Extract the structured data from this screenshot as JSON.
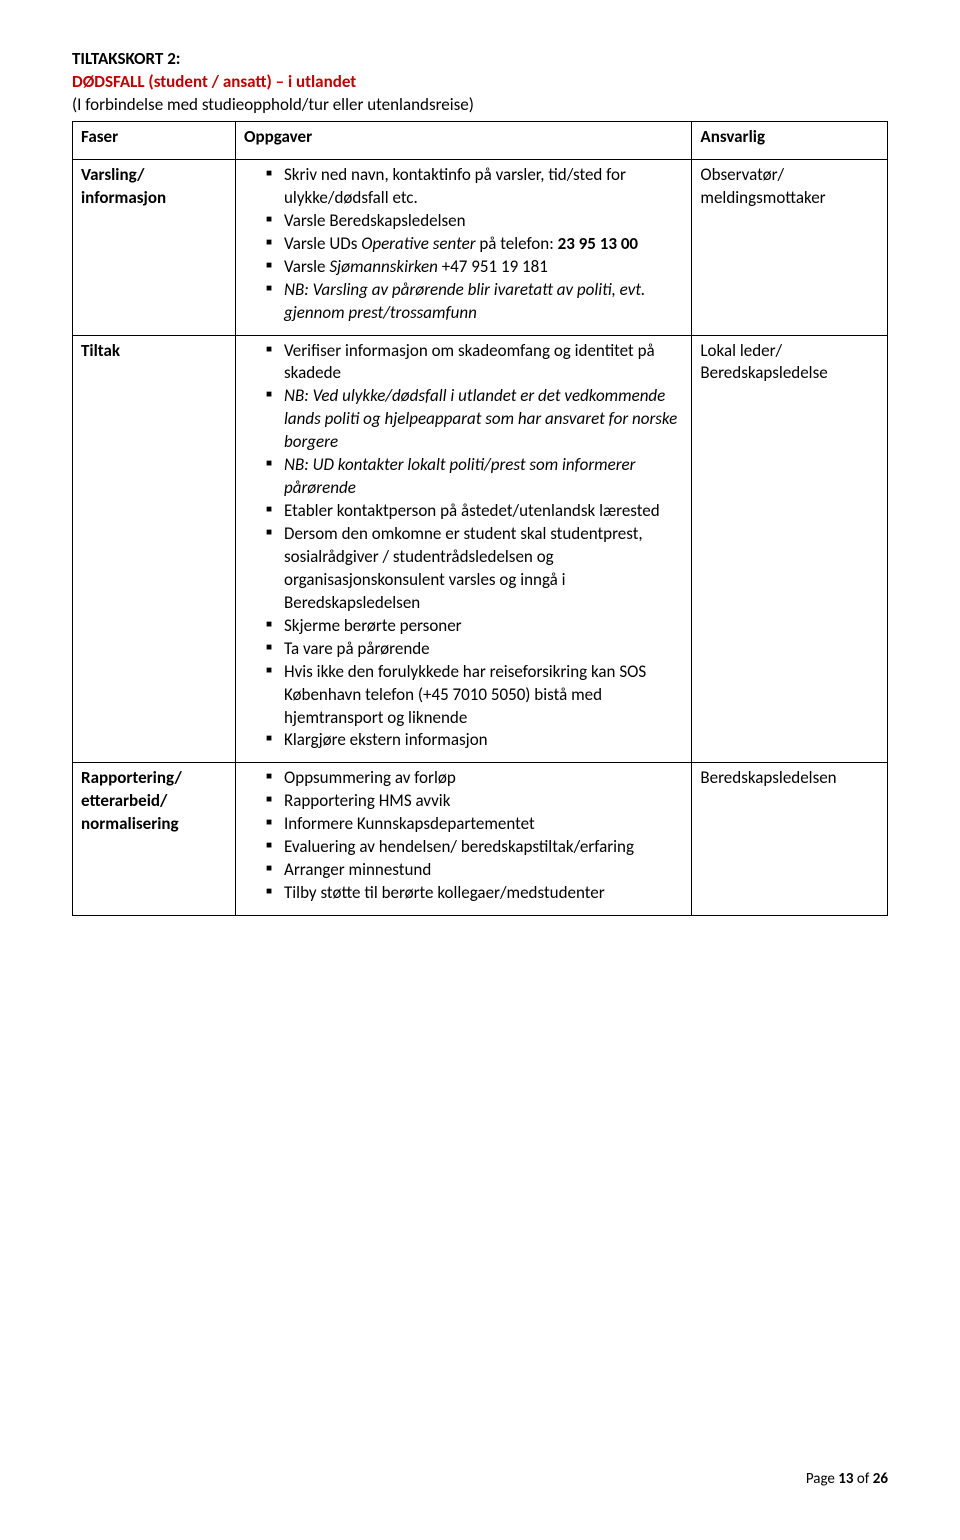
{
  "colors": {
    "text": "#000000",
    "red": "#c00000",
    "border": "#000000",
    "background": "#ffffff"
  },
  "typography": {
    "base_font": "Calibri",
    "base_size_pt": 12
  },
  "title": {
    "line1": "TILTAKSKORT 2:",
    "line2": "DØDSFALL (student / ansatt) – i utlandet",
    "line3": "(I forbindelse med studieopphold/tur eller utenlandsreise)"
  },
  "table": {
    "header": {
      "c1": "Faser",
      "c2": "Oppgaver",
      "c3": "Ansvarlig"
    },
    "rows": [
      {
        "phase_l1": "Varsling/",
        "phase_l2": "informasjon",
        "bullets": [
          {
            "pre": "Skriv ned navn, kontaktinfo på varsler, tid/sted for ulykke/dødsfall etc."
          },
          {
            "pre": "Varsle Beredskapsledelsen"
          },
          {
            "pre": "Varsle UDs ",
            "it1": "Operative senter",
            "mid": " på telefon: ",
            "b1": "23 95 13 00"
          },
          {
            "pre": "Varsle ",
            "it1": "Sjømannskirken",
            "mid": " +47 951 19 181"
          },
          {
            "it1": "NB: Varsling av pårørende blir ivaretatt av politi, evt. gjennom prest/trossamfunn"
          }
        ],
        "resp_l1": "Observatør/",
        "resp_l2": "meldingsmottaker"
      },
      {
        "phase_l1": "Tiltak",
        "bullets": [
          {
            "pre": "Verifiser informasjon om skadeomfang og identitet på skadede"
          },
          {
            "it1": "NB: Ved ulykke/dødsfall i utlandet er det vedkommende lands politi og hjelpeapparat som har ansvaret for norske borgere"
          },
          {
            "it1": "NB: UD kontakter lokalt politi/prest som informerer pårørende"
          },
          {
            "pre": "Etabler kontaktperson på åstedet/utenlandsk lærested"
          },
          {
            "pre": "Dersom den omkomne er student skal studentprest, sosialrådgiver / studentrådsledelsen og organisasjonskonsulent varsles og inngå i Beredskapsledelsen"
          },
          {
            "pre": "Skjerme berørte personer"
          },
          {
            "pre": "Ta vare på pårørende"
          },
          {
            "pre": "Hvis ikke den forulykkede har reiseforsikring kan SOS København telefon (+45 7010 5050) bistå med hjemtransport og liknende"
          },
          {
            "pre": "Klargjøre ekstern informasjon"
          }
        ],
        "resp_l1": "Lokal leder/",
        "resp_l2": "Beredskapsledelse"
      },
      {
        "phase_l1": "Rapportering/",
        "phase_l2": "etterarbeid/",
        "phase_l3": "normalisering",
        "bullets": [
          {
            "pre": "Oppsummering av forløp"
          },
          {
            "pre": "Rapportering HMS avvik"
          },
          {
            "pre": "Informere Kunnskapsdepartementet"
          },
          {
            "pre": "Evaluering av hendelsen/ beredskapstiltak/erfaring"
          },
          {
            "pre": "Arranger minnestund"
          },
          {
            "pre": "Tilby støtte til berørte kollegaer/medstudenter"
          }
        ],
        "resp_l1": "Beredskapsledelsen"
      }
    ]
  },
  "footer": {
    "prefix": "Page ",
    "num": "13",
    "suffix": " of ",
    "total": "26"
  }
}
